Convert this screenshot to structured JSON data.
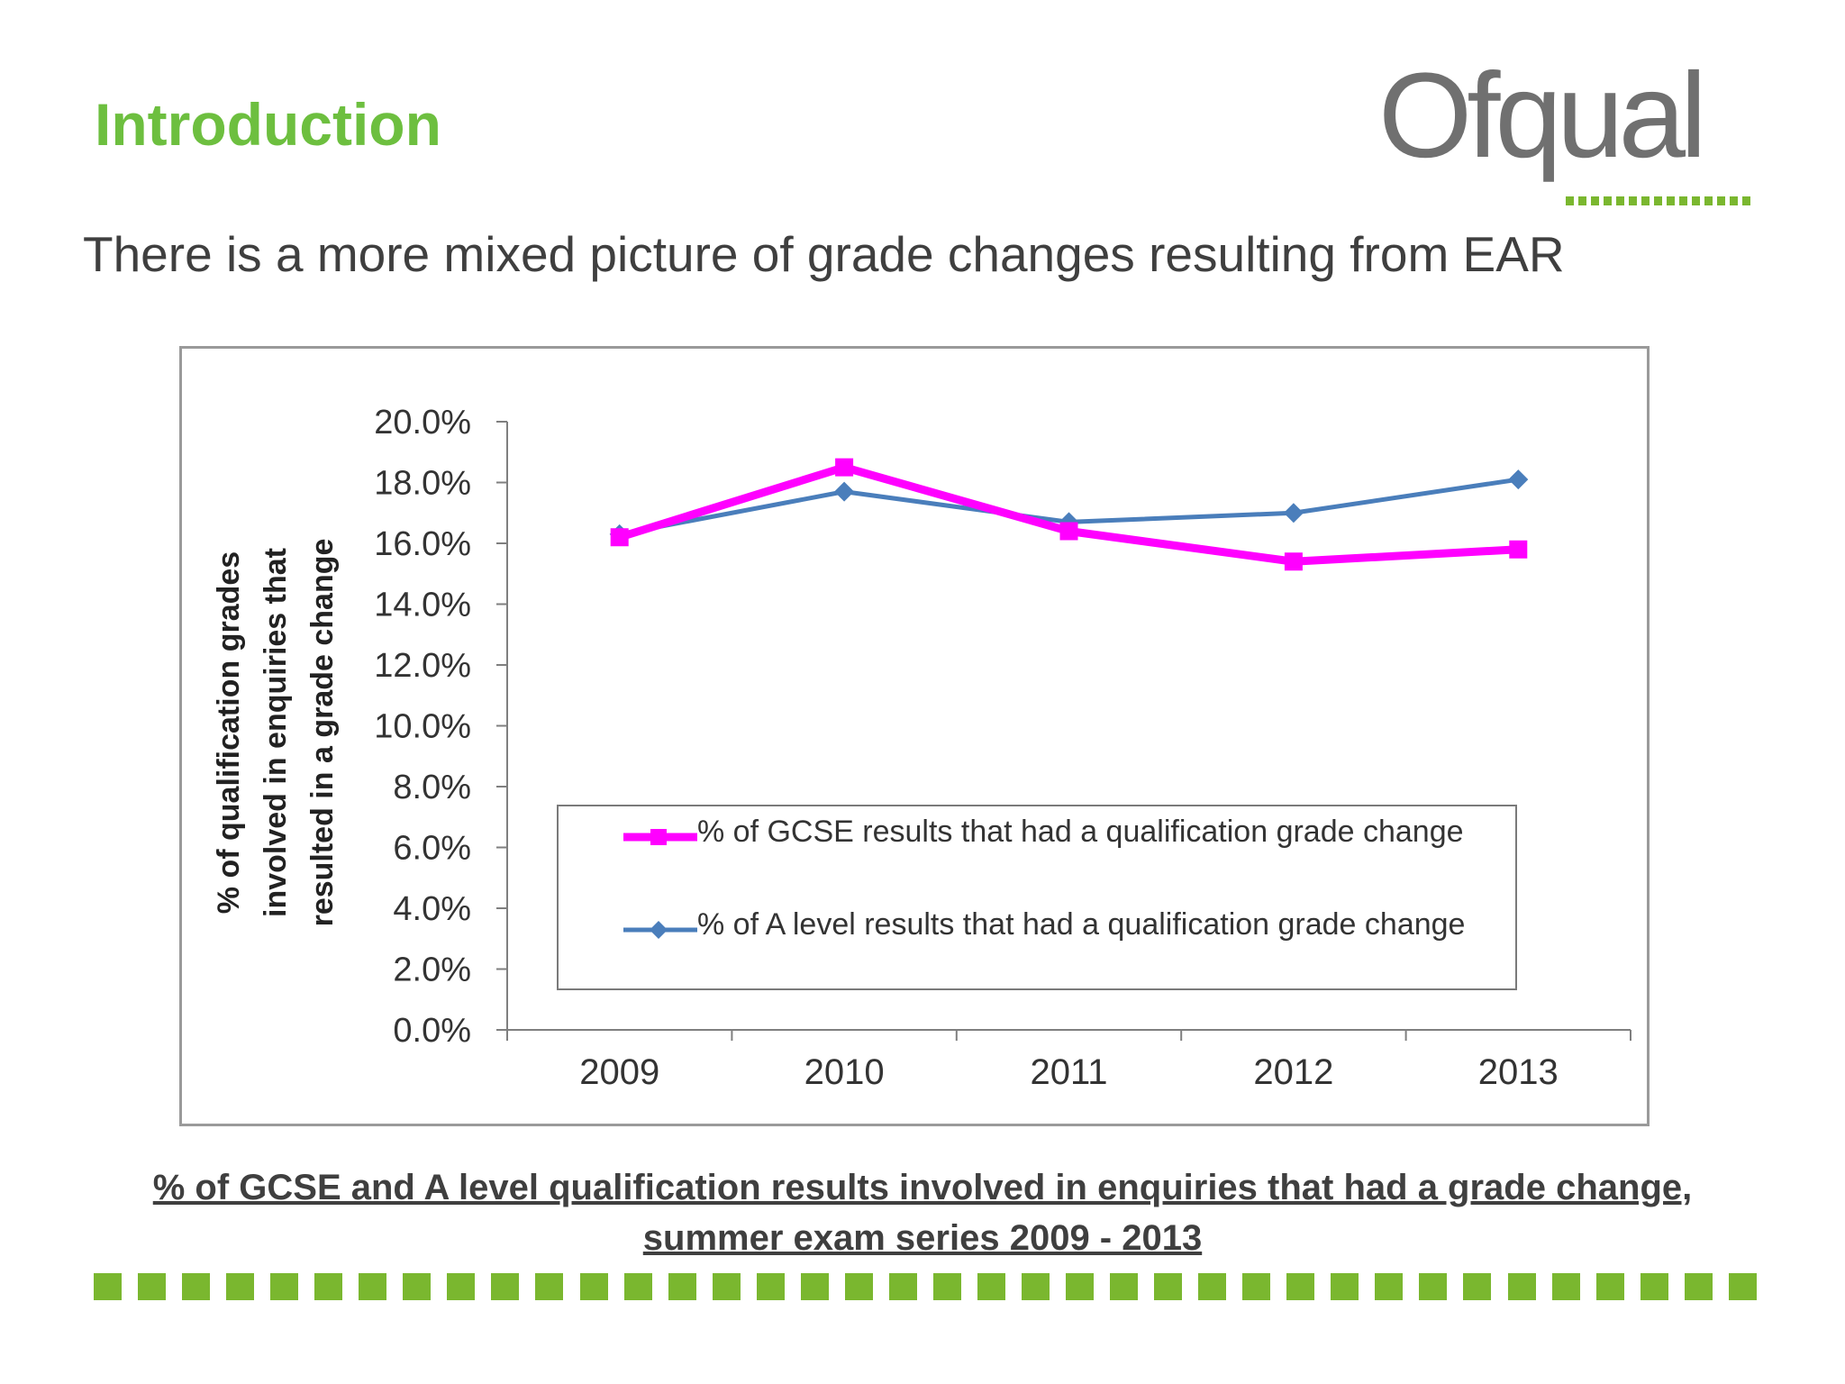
{
  "slide": {
    "title": "Introduction",
    "subtitle": "There is a more mixed picture of grade changes resulting from EAR",
    "caption": "% of GCSE and A level qualification results involved in enquiries that had a grade change, summer exam series 2009 - 2013",
    "logo_text": "Ofqual"
  },
  "colors": {
    "title": "#6dbf3f",
    "bottom_bar": "#7ab72f",
    "gcse_series": "#ff00ff",
    "alevel_series": "#4a7ebb",
    "logo": "#707070"
  },
  "chart_data": {
    "type": "line",
    "title": "",
    "ylabel": "% of  qualification grades involved in enquiries that resulted in a grade change",
    "xlabel": "",
    "categories": [
      "2009",
      "2010",
      "2011",
      "2012",
      "2013"
    ],
    "y_ticks": [
      "0.0%",
      "2.0%",
      "4.0%",
      "6.0%",
      "8.0%",
      "10.0%",
      "12.0%",
      "14.0%",
      "16.0%",
      "18.0%",
      "20.0%"
    ],
    "ylim": [
      0,
      20
    ],
    "grid": false,
    "legend_position": "bottom-right inside plot",
    "series": [
      {
        "name": "% of GCSE results that had a qualification grade change",
        "values": [
          16.2,
          18.5,
          16.4,
          15.4,
          15.8
        ],
        "color": "#ff00ff",
        "marker": "square"
      },
      {
        "name": "% of A level results that had a qualification grade change",
        "values": [
          16.3,
          17.7,
          16.7,
          17.0,
          18.1
        ],
        "color": "#4a7ebb",
        "marker": "diamond"
      }
    ]
  }
}
